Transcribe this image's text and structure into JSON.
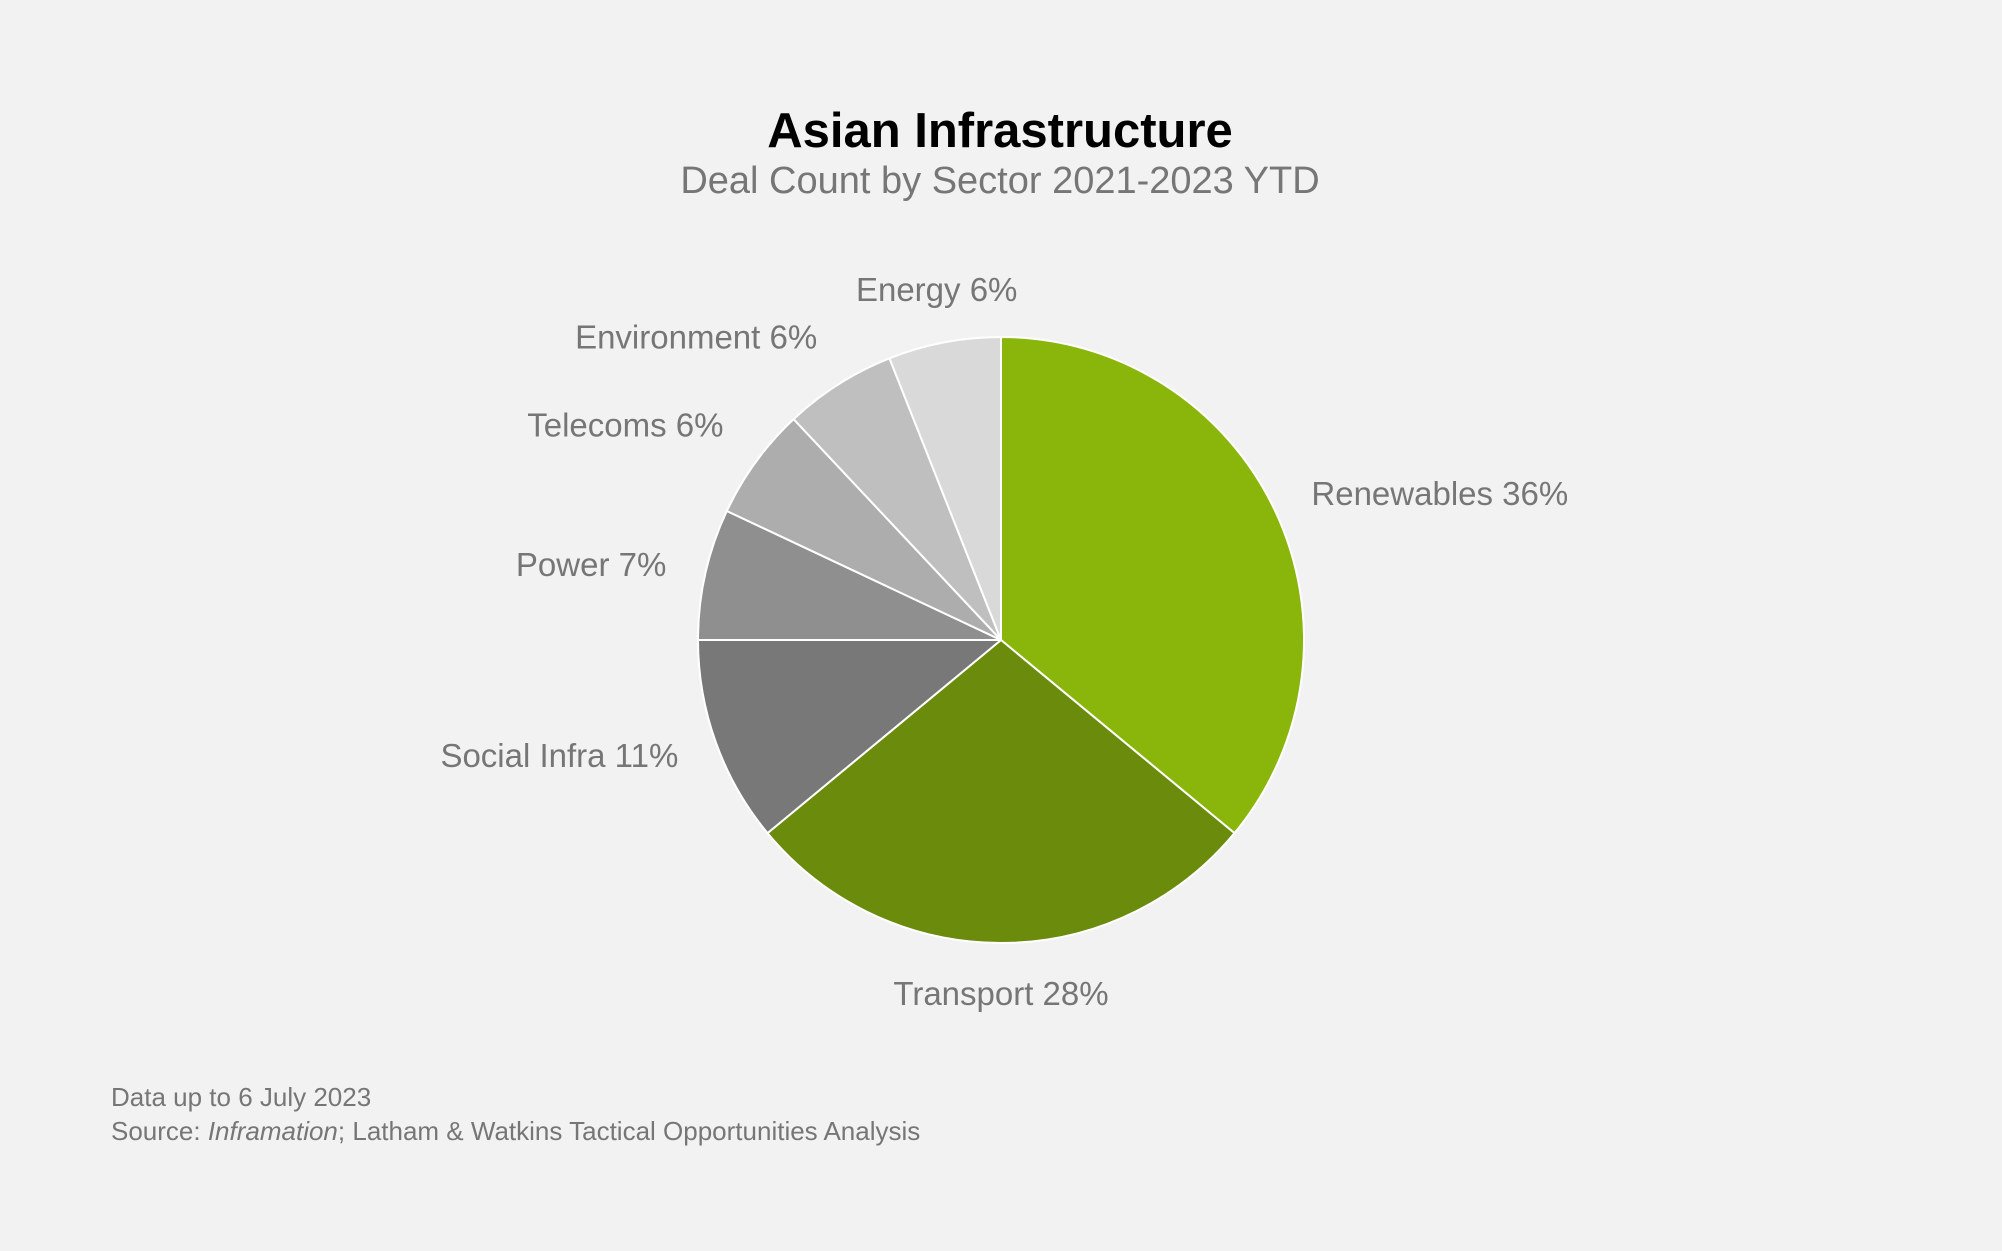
{
  "chart_data": {
    "type": "pie",
    "title": "Asian Infrastructure",
    "subtitle": "Deal Count by Sector 2021-2023 YTD",
    "start_angle_deg": 0,
    "direction": "clockwise",
    "slice_stroke_color": "#ffffff",
    "slices": [
      {
        "label": "Renewables",
        "value": 36,
        "display": "Renewables 36%",
        "color": "#8ab60b"
      },
      {
        "label": "Transport",
        "value": 28,
        "display": "Transport 28%",
        "color": "#6a8b0c"
      },
      {
        "label": "Social Infra",
        "value": 11,
        "display": "Social Infra 11%",
        "color": "#787878"
      },
      {
        "label": "Power",
        "value": 7,
        "display": "Power 7%",
        "color": "#8f8f8f"
      },
      {
        "label": "Telecoms",
        "value": 6,
        "display": "Telecoms 6%",
        "color": "#adadad"
      },
      {
        "label": "Environment",
        "value": 6,
        "display": "Environment 6%",
        "color": "#bfbfbf"
      },
      {
        "label": "Energy",
        "value": 6,
        "display": "Energy 6%",
        "color": "#d9d9d9"
      }
    ]
  },
  "footnotes": {
    "date_note": "Data up to 6 July 2023",
    "source_prefix": "Source: ",
    "source_name": "Inframation",
    "source_rest": "; Latham & Watkins Tactical Opportunities Analysis"
  }
}
